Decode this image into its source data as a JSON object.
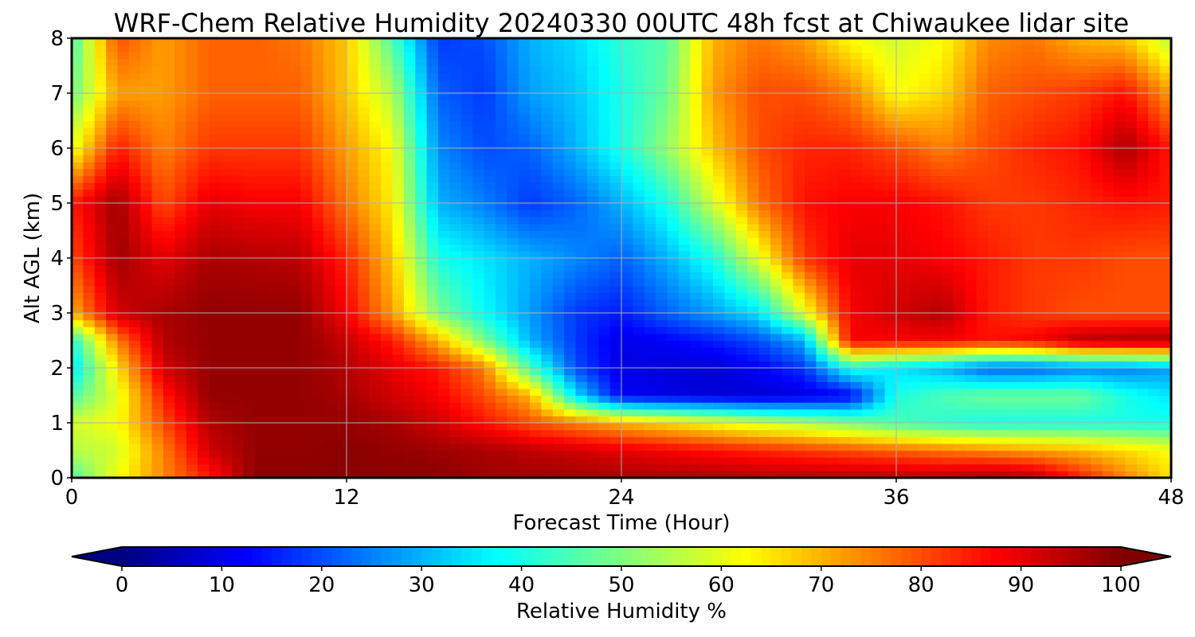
{
  "chart_data": {
    "type": "heatmap",
    "title": "WRF-Chem Relative Humidity 20240330 00UTC 48h fcst at Chiwaukee lidar site",
    "xlabel": "Forecast Time (Hour)",
    "ylabel": "Alt AGL (km)",
    "xlim": [
      0,
      48
    ],
    "ylim": [
      0,
      8
    ],
    "x_ticks": [
      "0",
      "12",
      "24",
      "36",
      "48"
    ],
    "y_ticks": [
      "0",
      "1",
      "2",
      "3",
      "4",
      "5",
      "6",
      "7",
      "8"
    ],
    "grid": true,
    "colormap": "jet",
    "colorbar": {
      "label": "Relative Humidity %",
      "range": [
        0,
        100
      ],
      "ticks": [
        "0",
        "10",
        "20",
        "30",
        "40",
        "50",
        "60",
        "70",
        "80",
        "90",
        "100"
      ],
      "extend": "both",
      "orientation": "horizontal"
    },
    "x_hours": [
      0,
      2,
      4,
      6,
      8,
      10,
      12,
      14,
      16,
      18,
      20,
      22,
      24,
      26,
      28,
      30,
      32,
      34,
      36,
      38,
      40,
      42,
      44,
      46,
      48
    ],
    "y_km": [
      0,
      0.5,
      1,
      1.5,
      2,
      2.5,
      3,
      4,
      5,
      6,
      7,
      8
    ],
    "values": [
      [
        45,
        62,
        74,
        85,
        99,
        99,
        99,
        99,
        99,
        97,
        97,
        97,
        96,
        96,
        96,
        95,
        95,
        95,
        95,
        95,
        97,
        95,
        85,
        75,
        65
      ],
      [
        55,
        58,
        75,
        92,
        98,
        98,
        99,
        98,
        97,
        96,
        94,
        92,
        90,
        88,
        86,
        84,
        82,
        80,
        78,
        76,
        74,
        72,
        70,
        66,
        62
      ],
      [
        58,
        62,
        80,
        95,
        98,
        98,
        98,
        96,
        92,
        86,
        80,
        75,
        70,
        66,
        62,
        58,
        55,
        50,
        45,
        42,
        40,
        40,
        40,
        40,
        40
      ],
      [
        45,
        60,
        85,
        98,
        98,
        98,
        96,
        92,
        88,
        80,
        70,
        35,
        12,
        10,
        9,
        8,
        9,
        12,
        40,
        45,
        48,
        48,
        48,
        40,
        35
      ],
      [
        35,
        65,
        92,
        98,
        98,
        98,
        95,
        90,
        85,
        75,
        45,
        20,
        10,
        9,
        8,
        12,
        18,
        40,
        35,
        30,
        22,
        22,
        25,
        25,
        28
      ],
      [
        40,
        75,
        95,
        98,
        98,
        98,
        93,
        85,
        70,
        50,
        30,
        18,
        10,
        12,
        15,
        20,
        30,
        88,
        88,
        88,
        86,
        88,
        95,
        96,
        96
      ],
      [
        70,
        92,
        96,
        98,
        98,
        98,
        88,
        72,
        50,
        38,
        28,
        18,
        15,
        22,
        28,
        35,
        60,
        88,
        92,
        95,
        85,
        82,
        80,
        80,
        80
      ],
      [
        80,
        97,
        90,
        96,
        95,
        94,
        84,
        68,
        40,
        35,
        30,
        26,
        22,
        30,
        40,
        60,
        82,
        90,
        90,
        88,
        85,
        82,
        82,
        80,
        80
      ],
      [
        85,
        97,
        80,
        90,
        88,
        88,
        76,
        64,
        30,
        25,
        18,
        22,
        30,
        40,
        58,
        76,
        86,
        88,
        88,
        86,
        82,
        82,
        84,
        86,
        85
      ],
      [
        60,
        85,
        75,
        82,
        82,
        82,
        72,
        62,
        26,
        20,
        22,
        30,
        40,
        52,
        68,
        80,
        84,
        84,
        80,
        75,
        80,
        84,
        86,
        96,
        85
      ],
      [
        48,
        72,
        72,
        78,
        78,
        78,
        68,
        55,
        22,
        18,
        28,
        32,
        40,
        48,
        72,
        80,
        80,
        75,
        62,
        66,
        78,
        80,
        82,
        86,
        72
      ],
      [
        44,
        80,
        72,
        78,
        78,
        76,
        68,
        45,
        18,
        20,
        30,
        34,
        42,
        46,
        70,
        76,
        72,
        62,
        58,
        62,
        74,
        76,
        70,
        68,
        55
      ]
    ]
  }
}
